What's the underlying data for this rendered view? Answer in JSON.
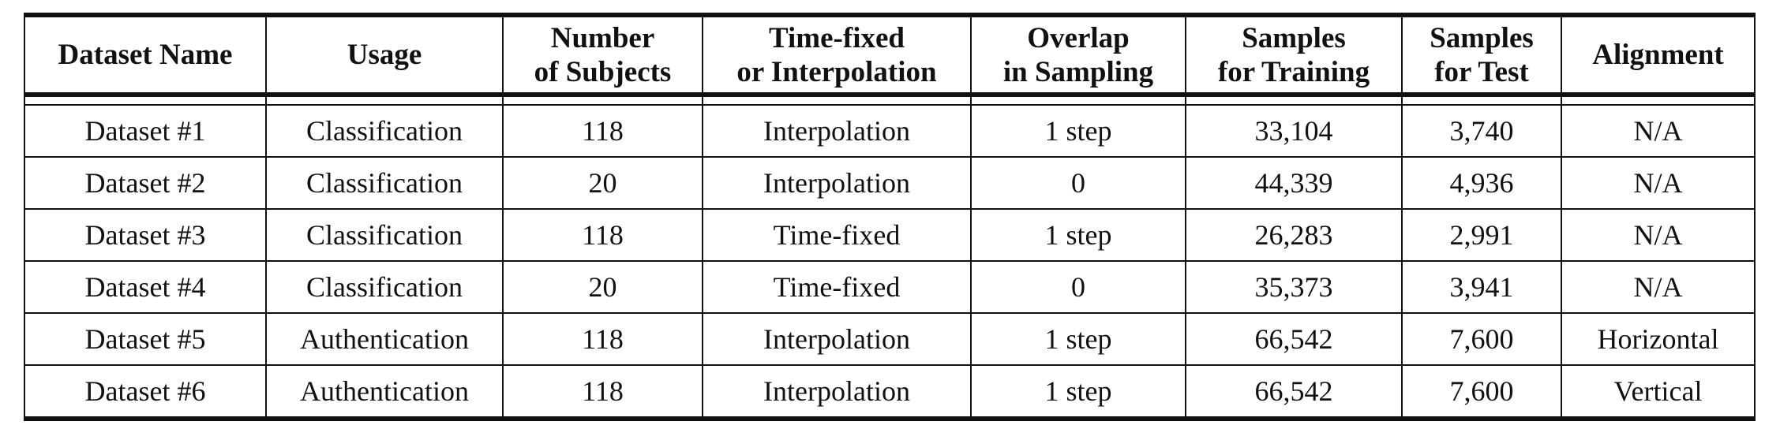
{
  "table": {
    "headers": [
      [
        "Dataset Name"
      ],
      [
        "Usage"
      ],
      [
        "Number",
        "of Subjects"
      ],
      [
        "Time-fixed",
        "or Interpolation"
      ],
      [
        "Overlap",
        "in Sampling"
      ],
      [
        "Samples",
        "for Training"
      ],
      [
        "Samples",
        "for Test"
      ],
      [
        "Alignment"
      ]
    ],
    "rows": [
      [
        "Dataset #1",
        "Classification",
        "118",
        "Interpolation",
        "1 step",
        "33,104",
        "3,740",
        "N/A"
      ],
      [
        "Dataset #2",
        "Classification",
        "20",
        "Interpolation",
        "0",
        "44,339",
        "4,936",
        "N/A"
      ],
      [
        "Dataset #3",
        "Classification",
        "118",
        "Time-fixed",
        "1 step",
        "26,283",
        "2,991",
        "N/A"
      ],
      [
        "Dataset #4",
        "Classification",
        "20",
        "Time-fixed",
        "0",
        "35,373",
        "3,941",
        "N/A"
      ],
      [
        "Dataset #5",
        "Authentication",
        "118",
        "Interpolation",
        "1 step",
        "66,542",
        "7,600",
        "Horizontal"
      ],
      [
        "Dataset #6",
        "Authentication",
        "118",
        "Interpolation",
        "1 step",
        "66,542",
        "7,600",
        "Vertical"
      ]
    ]
  }
}
